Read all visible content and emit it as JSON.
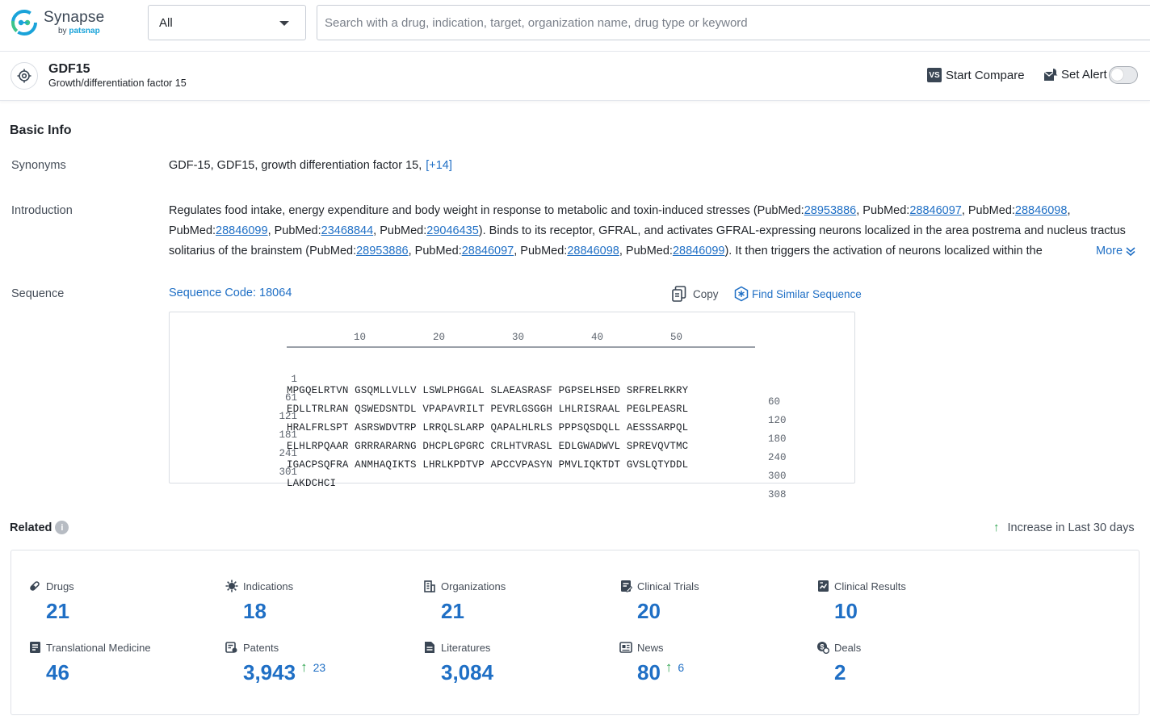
{
  "header": {
    "logo_name": "Synapse",
    "logo_by": "by",
    "logo_brand": "patsnap",
    "scope_value": "All",
    "search_placeholder": "Search with a drug, indication, target, organization name, drug type or keyword"
  },
  "target": {
    "name": "GDF15",
    "full_name": "Growth/differentiation factor 15",
    "compare_label": "Start Compare",
    "compare_badge": "VS",
    "alert_label": "Set Alert",
    "alert_enabled": false
  },
  "basic_info": {
    "title": "Basic Info",
    "synonyms_label": "Synonyms",
    "synonyms_text": "GDF-15,  GDF15,  growth differentiation factor 15,",
    "synonyms_more": "[+14]",
    "introduction_label": "Introduction",
    "intro": {
      "t1": "Regulates food intake, energy expenditure and body weight in response to metabolic and toxin-induced stresses (PubMed:",
      "l1": "28953886",
      "t2": ", PubMed:",
      "l2": "28846097",
      "t3": ", PubMed:",
      "l3": "28846098",
      "t4": ", PubMed:",
      "l4": "28846099",
      "t5": ", PubMed:",
      "l5": "23468844",
      "t6": ", PubMed:",
      "l6": "29046435",
      "t7": "). Binds to its receptor, GFRAL, and activates GFRAL-expressing neurons localized in the area postrema and nucleus tractus solitarius of the brainstem (PubMed:",
      "l7": "28953886",
      "t8": ", PubMed:",
      "l8": "28846097",
      "t9": ", PubMed:",
      "l9": "28846098",
      "t10": ", PubMed:",
      "l10": "28846099",
      "t11": "). It then triggers the activation of neurons localized within the"
    },
    "more_label": "More",
    "sequence_label": "Sequence",
    "sequence_code": "Sequence Code: 18064",
    "copy_label": "Copy",
    "find_similar_label": "Find Similar Sequence",
    "ruler_ticks": [
      "10",
      "20",
      "30",
      "40",
      "50"
    ],
    "sequence_lines": [
      {
        "start": "1",
        "seq": "MPGQELRTVN GSQMLLVLLV LSWLPHGGAL SLAEASRASF PGPSELHSED SRFRELRKRY",
        "end": "60"
      },
      {
        "start": "61",
        "seq": "EDLLTRLRAN QSWEDSNTDL VPAPAVRILT PEVRLGSGGH LHLRISRAAL PEGLPEASRL",
        "end": "120"
      },
      {
        "start": "121",
        "seq": "HRALFRLSPT ASRSWDVTRP LRRQLSLARP QAPALHLRLS PPPSQSDQLL AESSSARPQL",
        "end": "180"
      },
      {
        "start": "181",
        "seq": "ELHLRPQAAR GRRRARARNG DHCPLGPGRC CRLHTVRASL EDLGWADWVL SPREVQVTMC",
        "end": "240"
      },
      {
        "start": "241",
        "seq": "IGACPSQFRA ANMHAQIKTS LHRLKPDTVP APCCVPASYN PMVLIQKTDT GVSLQTYDDL",
        "end": "300"
      },
      {
        "start": "301",
        "seq": "LAKDCHCI",
        "end": "308"
      }
    ]
  },
  "related": {
    "title": "Related",
    "info_glyph": "i",
    "legend_arrow": "↑",
    "legend_label": "Increase in Last 30 days",
    "items": [
      {
        "label": "Drugs",
        "value": "21",
        "icon": "pill-icon"
      },
      {
        "label": "Indications",
        "value": "18",
        "icon": "virus-icon"
      },
      {
        "label": "Organizations",
        "value": "21",
        "icon": "building-icon"
      },
      {
        "label": "Clinical Trials",
        "value": "20",
        "icon": "clipboard-edit-icon"
      },
      {
        "label": "Clinical Results",
        "value": "10",
        "icon": "chart-doc-icon"
      },
      {
        "label": "Translational Medicine",
        "value": "46",
        "icon": "notebook-icon"
      },
      {
        "label": "Patents",
        "value": "3,943",
        "icon": "patent-icon",
        "increase_arrow": "↑",
        "increase": "23"
      },
      {
        "label": "Literatures",
        "value": "3,084",
        "icon": "document-icon"
      },
      {
        "label": "News",
        "value": "80",
        "icon": "newspaper-icon",
        "increase_arrow": "↑",
        "increase": "6"
      },
      {
        "label": "Deals",
        "value": "2",
        "icon": "handshake-dollar-icon"
      }
    ]
  },
  "colors": {
    "accent_blue": "#1f6fc5",
    "increase_green": "#2ea44f",
    "text_dark": "#1f2329"
  }
}
